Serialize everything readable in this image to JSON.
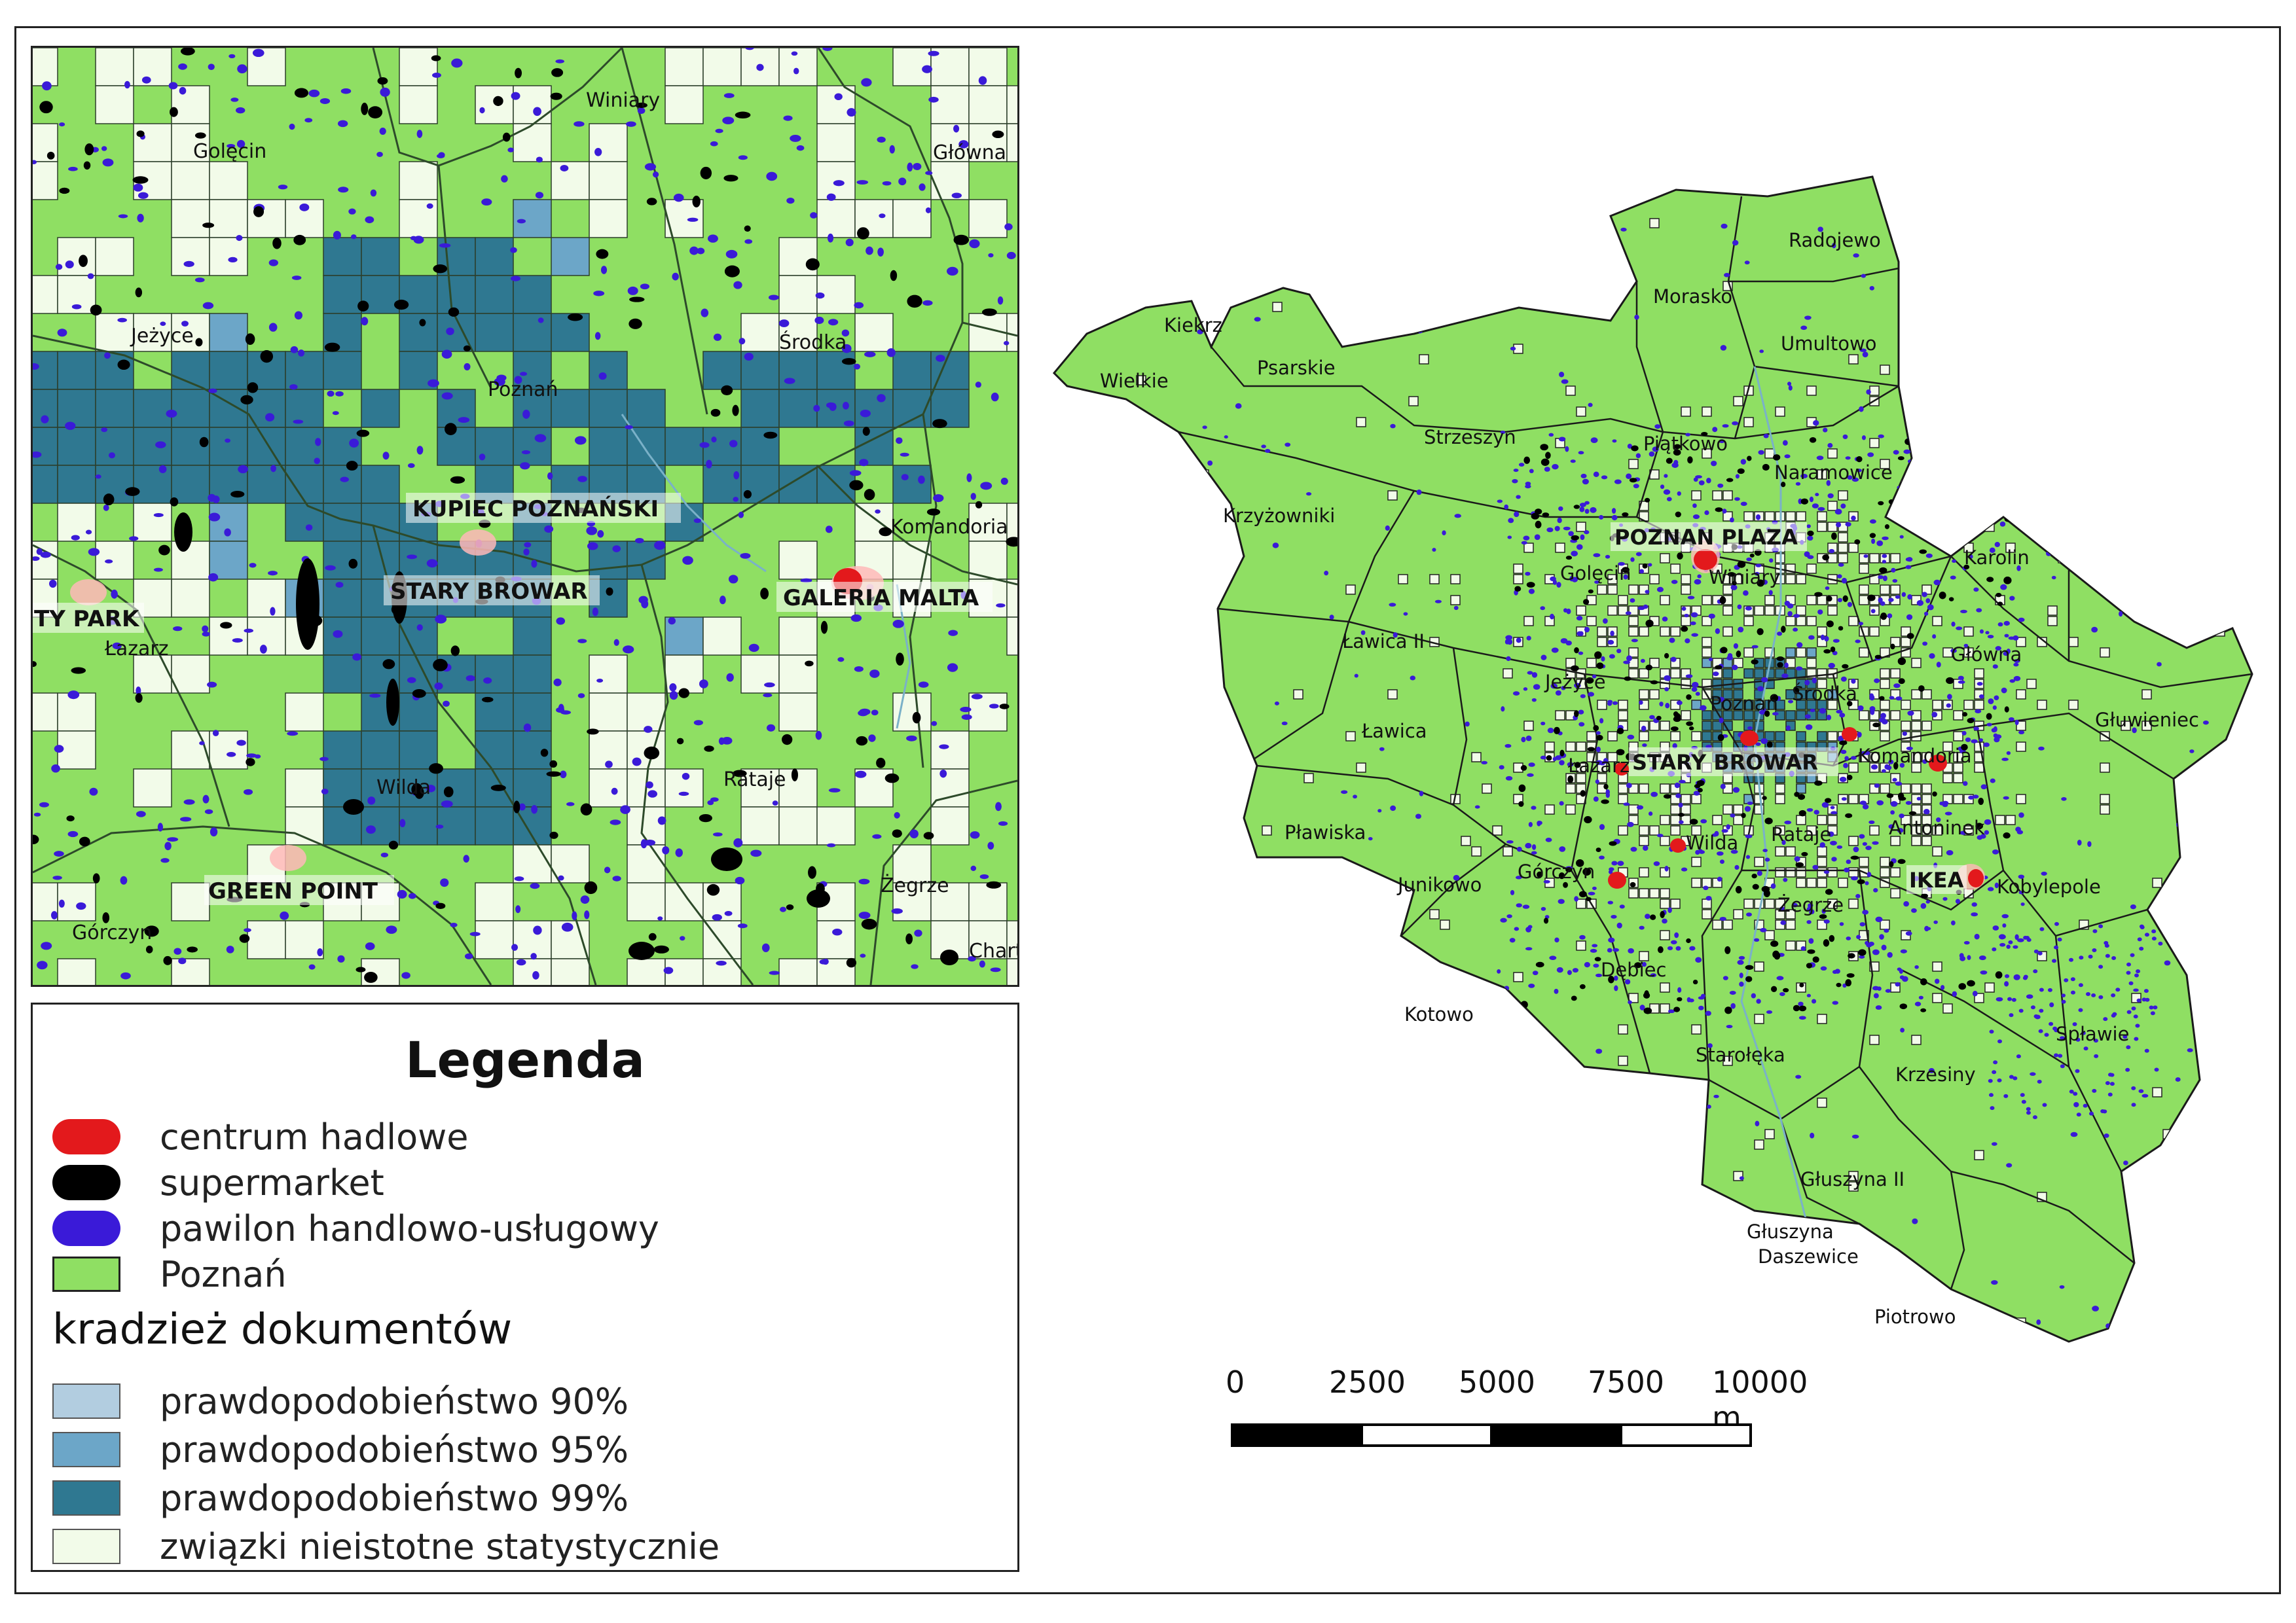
{
  "legend": {
    "title": "Legenda",
    "items": [
      {
        "label": "centrum hadlowe",
        "color": "#e3191c",
        "shape": "blob"
      },
      {
        "label": "supermarket",
        "color": "#000000",
        "shape": "blob"
      },
      {
        "label": "pawilon handlowo-usługowy",
        "color": "#3a1ad8",
        "shape": "blob"
      },
      {
        "label": "Poznań",
        "color": "#8fdf63",
        "shape": "rect"
      }
    ],
    "subtitle": "kradzież dokumentów",
    "classes": [
      {
        "label": "prawdopodobieństwo 90%",
        "color": "#b2cde0"
      },
      {
        "label": "prawdopodobieństwo 95%",
        "color": "#6ca6c8"
      },
      {
        "label": "prawdopodobieństwo 99%",
        "color": "#2f7891"
      },
      {
        "label": "związki nieistotne statystycznie",
        "color": "#f2fbe9"
      }
    ]
  },
  "inset_map": {
    "districts": [
      "Winiary",
      "Golęcin",
      "Główna",
      "Jeżyce",
      "Poznań",
      "Środka",
      "Komandoria",
      "Łazarz",
      "Wilda",
      "Rataje",
      "Górczyn",
      "Żegrze",
      "Chart"
    ],
    "malls": [
      "KUPIEC POZNAŃSKI",
      "STARY BROWAR",
      "GALERIA MALTA",
      "TY PARK",
      "GREEN POINT"
    ]
  },
  "main_map": {
    "districts": [
      "Radojewo",
      "Morasko",
      "Kiekrz",
      "Umultowo",
      "Wielkie",
      "Psarskie",
      "Strzeszyn",
      "Piątkowo",
      "Naramowice",
      "Krzyżowniki",
      "Karolin",
      "Golęcin",
      "Winiary",
      "Ławica II",
      "Główna",
      "Jeżyce",
      "Poznań",
      "Środka",
      "Ławica",
      "Głuwieniec",
      "Łazarz",
      "Komandoria",
      "Ławica",
      "Pławiska",
      "Wilda",
      "Rataje",
      "Antoninek",
      "Junikowo",
      "Górczyn",
      "Żegrze",
      "Kobylepole",
      "Dębiec",
      "Kotowo",
      "Starołęka",
      "Spławie",
      "Krzesiny",
      "Głuszyna II",
      "Głuszyna",
      "Daszewice",
      "Piotrowo"
    ],
    "malls": [
      "POZNAN PLAZA",
      "STARY BROWAR",
      "IKEA"
    ]
  },
  "scale_bar": {
    "ticks": [
      "0",
      "2500",
      "5000",
      "7500",
      "10000 m"
    ]
  }
}
